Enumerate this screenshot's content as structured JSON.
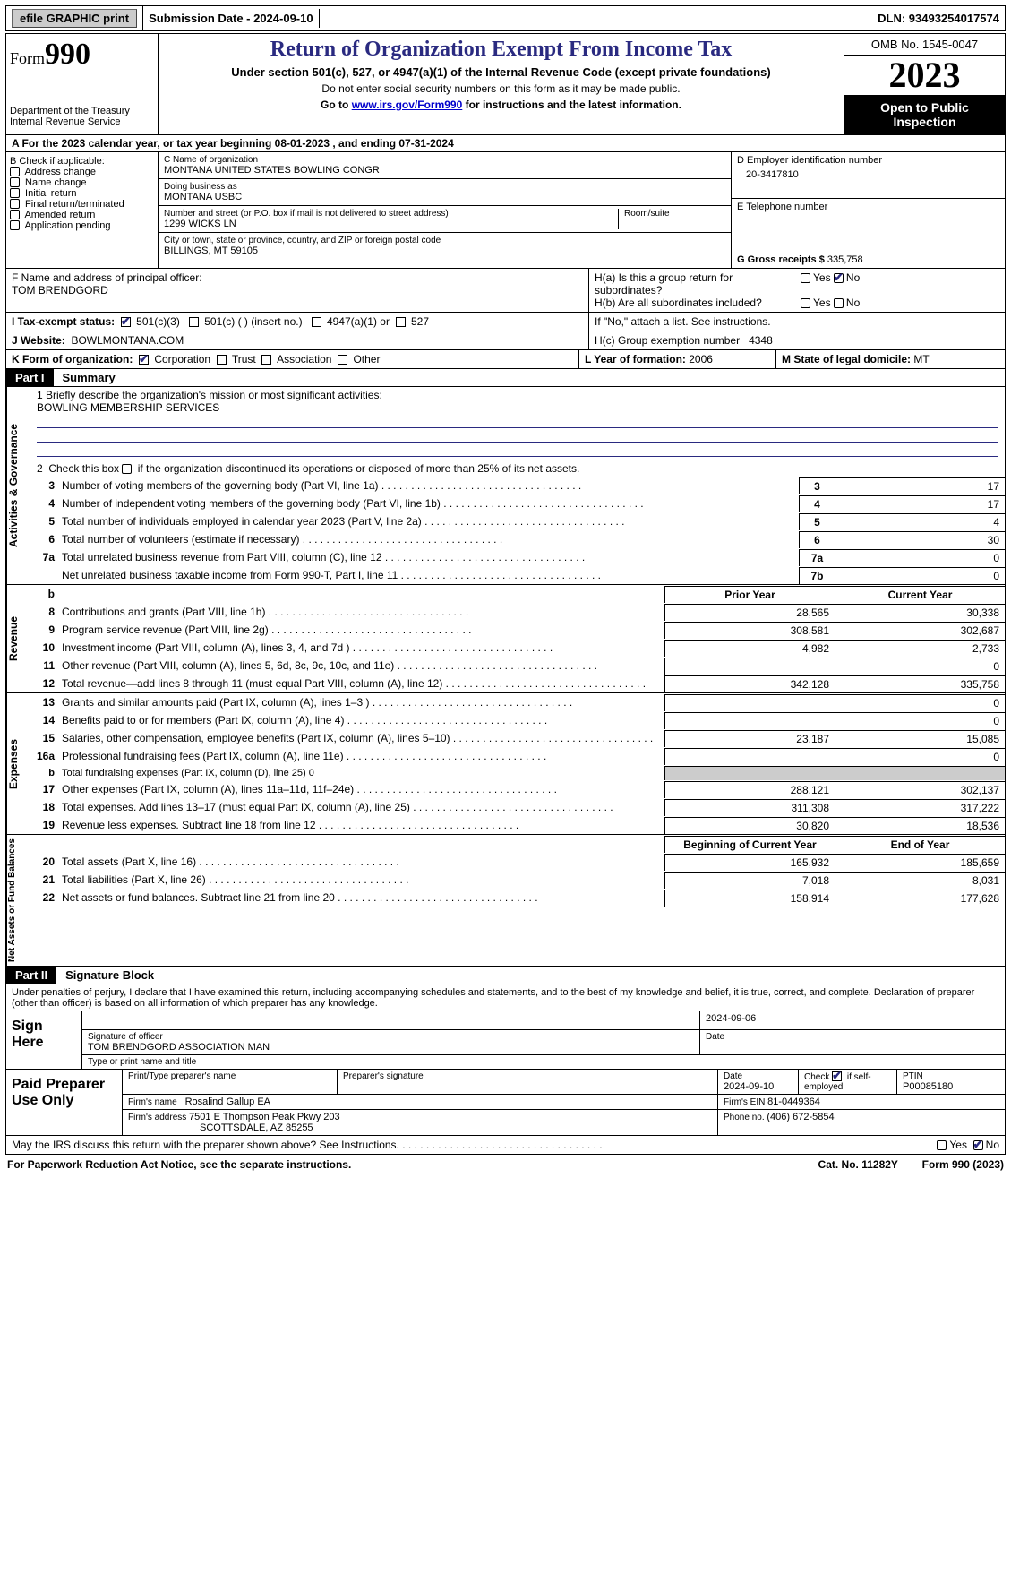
{
  "topbar": {
    "efile": "efile GRAPHIC print",
    "submission": "Submission Date - 2024-09-10",
    "dln": "DLN: 93493254017574"
  },
  "header": {
    "form_prefix": "Form",
    "form_number": "990",
    "dept1": "Department of the Treasury",
    "dept2": "Internal Revenue Service",
    "title": "Return of Organization Exempt From Income Tax",
    "subtitle": "Under section 501(c), 527, or 4947(a)(1) of the Internal Revenue Code (except private foundations)",
    "note1": "Do not enter social security numbers on this form as it may be made public.",
    "note2_pre": "Go to ",
    "note2_link": "www.irs.gov/Form990",
    "note2_post": " for instructions and the latest information.",
    "omb": "OMB No. 1545-0047",
    "year": "2023",
    "open": "Open to Public Inspection"
  },
  "line_a": "A  For the 2023 calendar year, or tax year beginning 08-01-2023    , and ending 07-31-2024",
  "box_b": {
    "label": "B Check if applicable:",
    "items": [
      "Address change",
      "Name change",
      "Initial return",
      "Final return/terminated",
      "Amended return",
      "Application pending"
    ]
  },
  "box_c": {
    "label_name": "C Name of organization",
    "org_name": "MONTANA UNITED STATES BOWLING CONGR",
    "dba_label": "Doing business as",
    "dba": "MONTANA USBC",
    "street_label": "Number and street (or P.O. box if mail is not delivered to street address)",
    "street": "1299 WICKS LN",
    "room_label": "Room/suite",
    "city_label": "City or town, state or province, country, and ZIP or foreign postal code",
    "city": "BILLINGS, MT  59105"
  },
  "box_d": {
    "label": "D Employer identification number",
    "value": "20-3417810"
  },
  "box_e": {
    "label": "E Telephone number",
    "value": ""
  },
  "box_g": {
    "label": "G Gross receipts $ ",
    "value": "335,758"
  },
  "box_f": {
    "label": "F  Name and address of principal officer:",
    "name": "TOM BRENDGORD"
  },
  "box_h": {
    "ha": "H(a)  Is this a group return for subordinates?",
    "hb": "H(b)  Are all subordinates included?",
    "hb_note": "If \"No,\" attach a list. See instructions.",
    "hc": "H(c)  Group exemption number   ",
    "hc_val": "4348",
    "yes": "Yes",
    "no": "No"
  },
  "box_i": {
    "label": "I   Tax-exempt status:",
    "c3": "501(c)(3)",
    "c": "501(c) (  ) (insert no.)",
    "a1": "4947(a)(1) or",
    "s527": "527"
  },
  "box_j": {
    "label": "J   Website:",
    "value": "BOWLMONTANA.COM"
  },
  "box_k": {
    "label": "K Form of organization:",
    "corp": "Corporation",
    "trust": "Trust",
    "assoc": "Association",
    "other": "Other"
  },
  "box_l": {
    "label": "L Year of formation: ",
    "value": "2006"
  },
  "box_m": {
    "label": "M State of legal domicile: ",
    "value": "MT"
  },
  "parts": {
    "p1": "Part I",
    "p1t": "Summary",
    "p2": "Part II",
    "p2t": "Signature Block"
  },
  "mission": {
    "line1": "1  Briefly describe the organization's mission or most significant activities:",
    "text": "BOWLING MEMBERSHIP SERVICES",
    "line2": "2   Check this box           if the organization discontinued its operations or disposed of more than 25% of its net assets."
  },
  "vlabels": {
    "gov": "Activities & Governance",
    "rev": "Revenue",
    "exp": "Expenses",
    "net": "Net Assets or Fund Balances"
  },
  "cols": {
    "prior": "Prior Year",
    "curr": "Current Year",
    "boy": "Beginning of Current Year",
    "eoy": "End of Year"
  },
  "gov_lines": [
    {
      "n": "3",
      "t": "Number of voting members of the governing body (Part VI, line 1a)",
      "box": "3",
      "v": "17"
    },
    {
      "n": "4",
      "t": "Number of independent voting members of the governing body (Part VI, line 1b)",
      "box": "4",
      "v": "17"
    },
    {
      "n": "5",
      "t": "Total number of individuals employed in calendar year 2023 (Part V, line 2a)",
      "box": "5",
      "v": "4"
    },
    {
      "n": "6",
      "t": "Total number of volunteers (estimate if necessary)",
      "box": "6",
      "v": "30"
    },
    {
      "n": "7a",
      "t": "Total unrelated business revenue from Part VIII, column (C), line 12",
      "box": "7a",
      "v": "0"
    },
    {
      "n": "",
      "t": "Net unrelated business taxable income from Form 990-T, Part I, line 11",
      "box": "7b",
      "v": "0"
    }
  ],
  "rev_lines": [
    {
      "n": "8",
      "t": "Contributions and grants (Part VIII, line 1h)",
      "p": "28,565",
      "c": "30,338"
    },
    {
      "n": "9",
      "t": "Program service revenue (Part VIII, line 2g)",
      "p": "308,581",
      "c": "302,687"
    },
    {
      "n": "10",
      "t": "Investment income (Part VIII, column (A), lines 3, 4, and 7d )",
      "p": "4,982",
      "c": "2,733"
    },
    {
      "n": "11",
      "t": "Other revenue (Part VIII, column (A), lines 5, 6d, 8c, 9c, 10c, and 11e)",
      "p": "",
      "c": "0"
    },
    {
      "n": "12",
      "t": "Total revenue—add lines 8 through 11 (must equal Part VIII, column (A), line 12)",
      "p": "342,128",
      "c": "335,758"
    }
  ],
  "exp_lines": [
    {
      "n": "13",
      "t": "Grants and similar amounts paid (Part IX, column (A), lines 1–3 )",
      "p": "",
      "c": "0"
    },
    {
      "n": "14",
      "t": "Benefits paid to or for members (Part IX, column (A), line 4)",
      "p": "",
      "c": "0"
    },
    {
      "n": "15",
      "t": "Salaries, other compensation, employee benefits (Part IX, column (A), lines 5–10)",
      "p": "23,187",
      "c": "15,085"
    },
    {
      "n": "16a",
      "t": "Professional fundraising fees (Part IX, column (A), line 11e)",
      "p": "",
      "c": "0"
    },
    {
      "n": "b",
      "t": "Total fundraising expenses (Part IX, column (D), line 25) 0",
      "p": "",
      "c": "",
      "shade": true,
      "small": true
    },
    {
      "n": "17",
      "t": "Other expenses (Part IX, column (A), lines 11a–11d, 11f–24e)",
      "p": "288,121",
      "c": "302,137"
    },
    {
      "n": "18",
      "t": "Total expenses. Add lines 13–17 (must equal Part IX, column (A), line 25)",
      "p": "311,308",
      "c": "317,222"
    },
    {
      "n": "19",
      "t": "Revenue less expenses. Subtract line 18 from line 12",
      "p": "30,820",
      "c": "18,536"
    }
  ],
  "net_lines": [
    {
      "n": "20",
      "t": "Total assets (Part X, line 16)",
      "p": "165,932",
      "c": "185,659"
    },
    {
      "n": "21",
      "t": "Total liabilities (Part X, line 26)",
      "p": "7,018",
      "c": "8,031"
    },
    {
      "n": "22",
      "t": "Net assets or fund balances. Subtract line 21 from line 20",
      "p": "158,914",
      "c": "177,628"
    }
  ],
  "penalties": "Under penalties of perjury, I declare that I have examined this return, including accompanying schedules and statements, and to the best of my knowledge and belief, it is true, correct, and complete. Declaration of preparer (other than officer) is based on all information of which preparer has any knowledge.",
  "sign": {
    "here": "Sign Here",
    "date": "2024-09-06",
    "sig_label": "Signature of officer",
    "officer": "TOM BRENDGORD  ASSOCIATION MAN",
    "type_label": "Type or print name and title",
    "date_label": "Date"
  },
  "paid": {
    "label": "Paid Preparer Use Only",
    "h_name": "Print/Type preparer's name",
    "h_sig": "Preparer's signature",
    "h_date": "Date",
    "date": "2024-09-10",
    "h_check": "Check         if self-employed",
    "h_ptin": "PTIN",
    "ptin": "P00085180",
    "firm_name_l": "Firm's name      ",
    "firm_name": "Rosalind Gallup EA",
    "firm_ein_l": "Firm's EIN  ",
    "firm_ein": "81-0449364",
    "firm_addr_l": "Firm's address ",
    "firm_addr1": "7501 E Thompson Peak Pkwy 203",
    "firm_addr2": "SCOTTSDALE, AZ  85255",
    "phone_l": "Phone no. ",
    "phone": "(406) 672-5854"
  },
  "discuss": "May the IRS discuss this return with the preparer shown above? See Instructions.",
  "footer": {
    "left": "For Paperwork Reduction Act Notice, see the separate instructions.",
    "mid": "Cat. No. 11282Y",
    "right": "Form 990 (2023)"
  }
}
